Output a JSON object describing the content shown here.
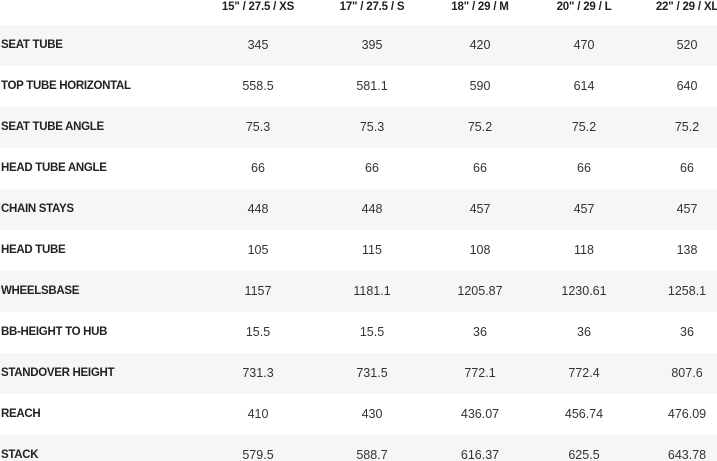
{
  "table": {
    "columns": [
      "15\" / 27.5 / XS",
      "17\" / 27.5 / S",
      "18\" / 29 / M",
      "20\" / 29 / L",
      "22\" / 29 / XL"
    ],
    "rows": [
      [
        "SEAT TUBE",
        "345",
        "395",
        "420",
        "470",
        "520"
      ],
      [
        "TOP TUBE HORIZONTAL",
        "558.5",
        "581.1",
        "590",
        "614",
        "640"
      ],
      [
        "SEAT TUBE ANGLE",
        "75.3",
        "75.3",
        "75.2",
        "75.2",
        "75.2"
      ],
      [
        "HEAD TUBE ANGLE",
        "66",
        "66",
        "66",
        "66",
        "66"
      ],
      [
        "CHAIN STAYS",
        "448",
        "448",
        "457",
        "457",
        "457"
      ],
      [
        "HEAD TUBE",
        "105",
        "115",
        "108",
        "118",
        "138"
      ],
      [
        "WHEELSBASE",
        "1157",
        "1181.1",
        "1205.87",
        "1230.61",
        "1258.1"
      ],
      [
        "BB-HEIGHT TO HUB",
        "15.5",
        "15.5",
        "36",
        "36",
        "36"
      ],
      [
        "STANDOVER HEIGHT",
        "731.3",
        "731.5",
        "772.1",
        "772.4",
        "807.6"
      ],
      [
        "REACH",
        "410",
        "430",
        "436.07",
        "456.74",
        "476.09"
      ],
      [
        "STACK",
        "579.5",
        "588.7",
        "616.37",
        "625.5",
        "643.78"
      ]
    ]
  }
}
